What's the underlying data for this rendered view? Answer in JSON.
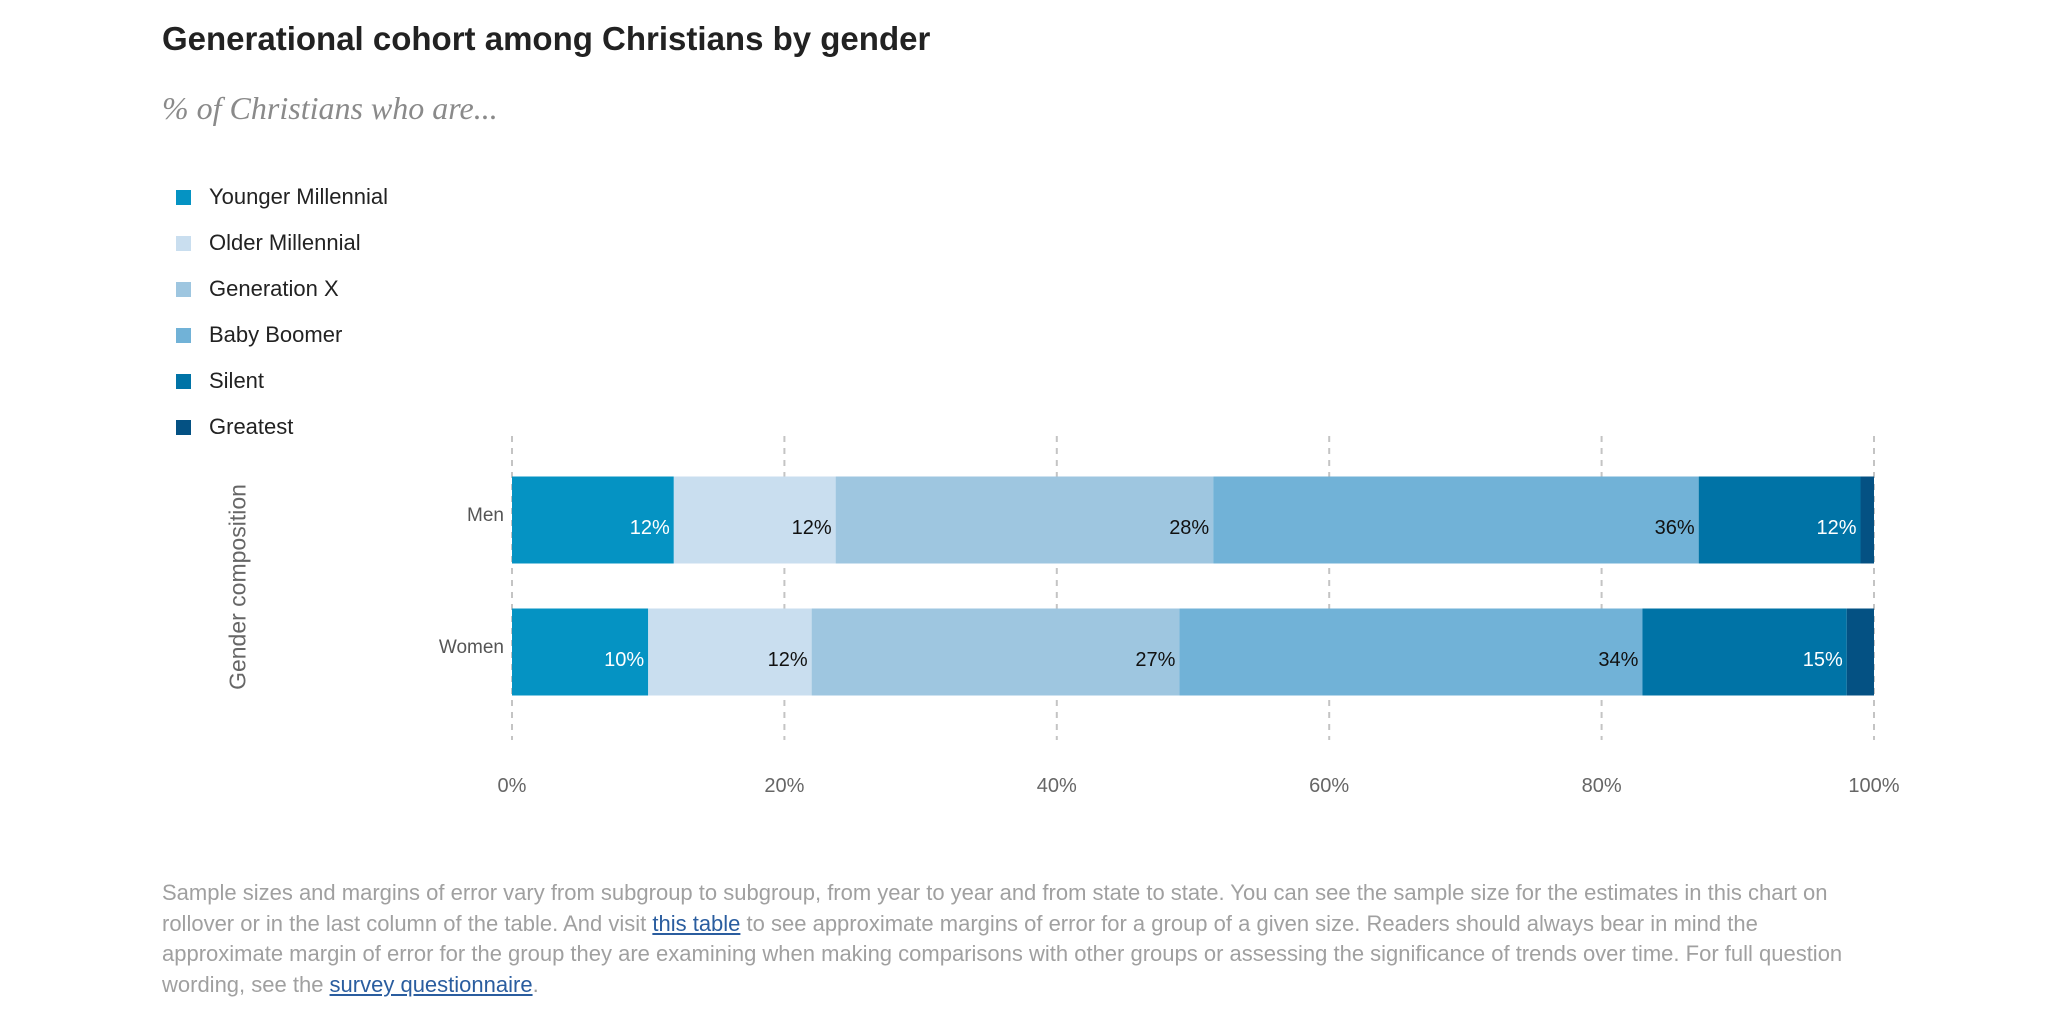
{
  "title": "Generational cohort among Christians by gender",
  "subtitle": "% of Christians who are...",
  "legend": [
    {
      "label": "Younger Millennial",
      "color": "#0593c3"
    },
    {
      "label": "Older Millennial",
      "color": "#c9deef"
    },
    {
      "label": "Generation X",
      "color": "#9ec6e0"
    },
    {
      "label": "Baby Boomer",
      "color": "#71b2d7"
    },
    {
      "label": "Silent",
      "color": "#0073a6"
    },
    {
      "label": "Greatest",
      "color": "#045183"
    }
  ],
  "chart_data": {
    "type": "bar",
    "orientation": "horizontal",
    "stacked": true,
    "title": "Generational cohort among Christians by gender",
    "subtitle": "% of Christians who are...",
    "ylabel": "Gender composition",
    "xlabel": "",
    "categories": [
      "Men",
      "Women"
    ],
    "series": [
      {
        "name": "Younger Millennial",
        "values": [
          12,
          10
        ],
        "color": "#0593c3",
        "label_color": "#ffffff"
      },
      {
        "name": "Older Millennial",
        "values": [
          12,
          12
        ],
        "color": "#c9deef",
        "label_color": "#111111"
      },
      {
        "name": "Generation X",
        "values": [
          28,
          27
        ],
        "color": "#9ec6e0",
        "label_color": "#111111"
      },
      {
        "name": "Baby Boomer",
        "values": [
          36,
          34
        ],
        "color": "#71b2d7",
        "label_color": "#111111"
      },
      {
        "name": "Silent",
        "values": [
          12,
          15
        ],
        "color": "#0073a6",
        "label_color": "#ffffff"
      },
      {
        "name": "Greatest",
        "values": [
          1,
          2
        ],
        "color": "#045183",
        "label_color": "#ffffff",
        "show_labels": false
      }
    ],
    "xlim": [
      0,
      100
    ],
    "xticks": [
      0,
      20,
      40,
      60,
      80,
      100
    ],
    "xtick_labels": [
      "0%",
      "20%",
      "40%",
      "60%",
      "80%",
      "100%"
    ],
    "grid": "vertical-dashed",
    "legend": "top-left"
  },
  "footnote": {
    "part1": "Sample sizes and margins of error vary from subgroup to subgroup, from year to year and from state to state. You can see the sample size for the estimates in this chart on rollover or in the last column of the table. And visit ",
    "link1": "this table",
    "part2": " to see approximate margins of error for a group of a given size. Readers should always bear in mind the approximate margin of error for the group they are examining when making comparisons with other groups or assessing the significance of trends over time. For full question wording, see the ",
    "link2": "survey questionnaire",
    "part3": "."
  }
}
